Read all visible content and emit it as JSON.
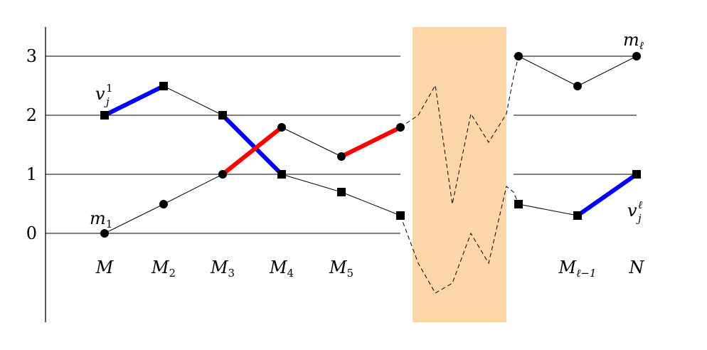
{
  "y_axis": {
    "ticks": [
      "0",
      "1",
      "2",
      "3"
    ]
  },
  "x_axis": {
    "labels": [
      {
        "base": "M",
        "sub": ""
      },
      {
        "base": "M",
        "sub": "2"
      },
      {
        "base": "M",
        "sub": "3"
      },
      {
        "base": "M",
        "sub": "4"
      },
      {
        "base": "M",
        "sub": "5"
      },
      {
        "base": "M",
        "sub": "ℓ−1"
      },
      {
        "base": "N",
        "sub": ""
      }
    ]
  },
  "annotations": {
    "m1": {
      "base": "m",
      "sub": "1"
    },
    "ml": {
      "base": "m",
      "sub": "ℓ"
    },
    "vj1": {
      "base": "v",
      "sub": "j",
      "sup": "1"
    },
    "vjl": {
      "base": "v",
      "sub": "j",
      "sup": "ℓ"
    }
  },
  "colors": {
    "blue": "#0000ff",
    "red": "#ff0000",
    "band": "#fcd5a8",
    "line": "#000000"
  },
  "upper_path": {
    "marker": "square",
    "left_values": [
      2,
      2.5,
      2,
      1,
      0.7,
      0.3
    ],
    "right_values": [
      0.5,
      0.3,
      1
    ]
  },
  "lower_path": {
    "marker": "circle",
    "left_values": [
      0,
      0.5,
      1,
      1.8,
      1.3,
      1.8
    ],
    "right_values": [
      3,
      2.5,
      3
    ]
  }
}
